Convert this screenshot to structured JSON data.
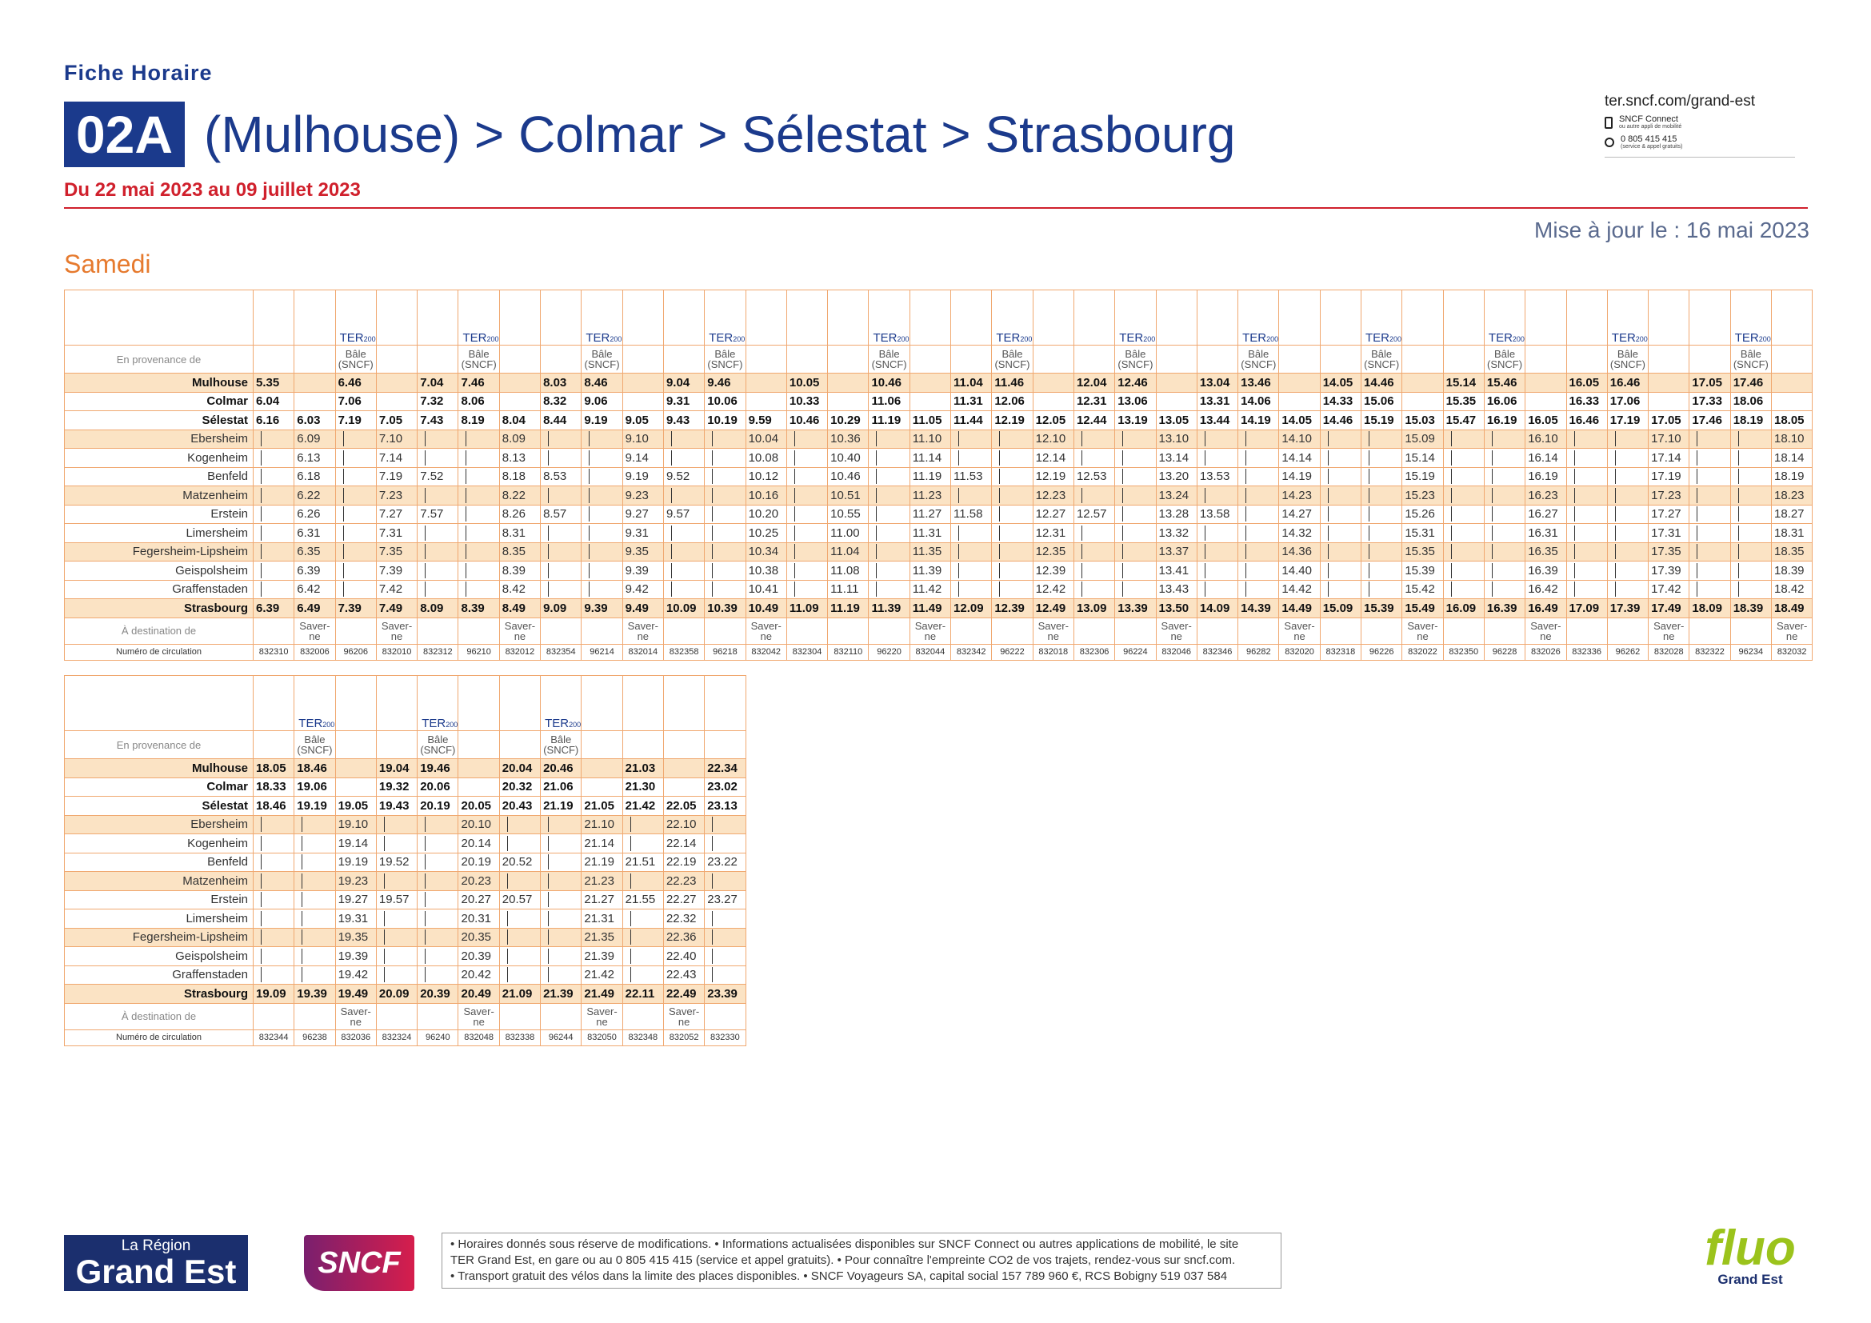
{
  "header": {
    "fiche": "Fiche Horaire",
    "line": "02A",
    "title": "(Mulhouse) > Colmar > Sélestat > Strasbourg",
    "period": "Du 22 mai 2023 au 09 juillet 2023",
    "updated": "Mise à jour le : 16 mai 2023",
    "day": "Samedi"
  },
  "contact": {
    "site": "ter.sncf.com/grand-est",
    "app": "SNCF Connect",
    "app_note": "ou autre appli de mobilité",
    "phone": "0 805 415 415",
    "phone_note": "(service & appel gratuits)"
  },
  "labels": {
    "provenance": "En provenance de",
    "destination": "À destination de",
    "number": "Numéro de circulation",
    "brand": "TER",
    "brand_sub": "200"
  },
  "tables": [
    {
      "brand": [
        false,
        false,
        true,
        false,
        false,
        true,
        false,
        false,
        true,
        false,
        false,
        true,
        false,
        false,
        false,
        true,
        false,
        false,
        true,
        false,
        false,
        true,
        false,
        false,
        true,
        false,
        false,
        true,
        false,
        false,
        true,
        false,
        false,
        true,
        false,
        false,
        true,
        false
      ],
      "provenance": [
        null,
        null,
        "Bâle\n(SNCF)",
        null,
        null,
        "Bâle\n(SNCF)",
        null,
        null,
        "Bâle\n(SNCF)",
        null,
        null,
        "Bâle\n(SNCF)",
        null,
        null,
        null,
        "Bâle\n(SNCF)",
        null,
        null,
        "Bâle\n(SNCF)",
        null,
        null,
        "Bâle\n(SNCF)",
        null,
        null,
        "Bâle\n(SNCF)",
        null,
        null,
        "Bâle\n(SNCF)",
        null,
        null,
        "Bâle\n(SNCF)",
        null,
        null,
        "Bâle\n(SNCF)",
        null,
        null,
        "Bâle\n(SNCF)",
        null
      ],
      "rows": [
        {
          "station": "Mulhouse",
          "times": [
            "5.35",
            null,
            "6.46",
            null,
            "7.04",
            "7.46",
            null,
            "8.03",
            "8.46",
            null,
            "9.04",
            "9.46",
            null,
            "10.05",
            null,
            "10.46",
            null,
            "11.04",
            "11.46",
            null,
            "12.04",
            "12.46",
            null,
            "13.04",
            "13.46",
            null,
            "14.05",
            "14.46",
            null,
            "15.14",
            "15.46",
            null,
            "16.05",
            "16.46",
            null,
            "17.05",
            "17.46",
            null
          ]
        },
        {
          "station": "Colmar",
          "times": [
            "6.04",
            null,
            "7.06",
            null,
            "7.32",
            "8.06",
            null,
            "8.32",
            "9.06",
            null,
            "9.31",
            "10.06",
            null,
            "10.33",
            null,
            "11.06",
            null,
            "11.31",
            "12.06",
            null,
            "12.31",
            "13.06",
            null,
            "13.31",
            "14.06",
            null,
            "14.33",
            "15.06",
            null,
            "15.35",
            "16.06",
            null,
            "16.33",
            "17.06",
            null,
            "17.33",
            "18.06",
            null
          ]
        },
        {
          "station": "Sélestat",
          "times": [
            "6.16",
            "6.03",
            "7.19",
            "7.05",
            "7.43",
            "8.19",
            "8.04",
            "8.44",
            "9.19",
            "9.05",
            "9.43",
            "10.19",
            "9.59",
            "10.46",
            "10.29",
            "11.19",
            "11.05",
            "11.44",
            "12.19",
            "12.05",
            "12.44",
            "13.19",
            "13.05",
            "13.44",
            "14.19",
            "14.05",
            "14.46",
            "15.19",
            "15.03",
            "15.47",
            "16.19",
            "16.05",
            "16.46",
            "17.19",
            "17.05",
            "17.46",
            "18.19",
            "18.05"
          ]
        },
        {
          "station": "Ebersheim",
          "times": [
            null,
            "6.09",
            null,
            "7.10",
            null,
            null,
            "8.09",
            null,
            null,
            "9.10",
            null,
            null,
            "10.04",
            null,
            "10.36",
            null,
            "11.10",
            null,
            null,
            "12.10",
            null,
            null,
            "13.10",
            null,
            null,
            "14.10",
            null,
            null,
            "15.09",
            null,
            null,
            "16.10",
            null,
            null,
            "17.10",
            null,
            null,
            "18.10"
          ]
        },
        {
          "station": "Kogenheim",
          "times": [
            null,
            "6.13",
            null,
            "7.14",
            null,
            null,
            "8.13",
            null,
            null,
            "9.14",
            null,
            null,
            "10.08",
            null,
            "10.40",
            null,
            "11.14",
            null,
            null,
            "12.14",
            null,
            null,
            "13.14",
            null,
            null,
            "14.14",
            null,
            null,
            "15.14",
            null,
            null,
            "16.14",
            null,
            null,
            "17.14",
            null,
            null,
            "18.14"
          ]
        },
        {
          "station": "Benfeld",
          "times": [
            null,
            "6.18",
            null,
            "7.19",
            "7.52",
            null,
            "8.18",
            "8.53",
            null,
            "9.19",
            "9.52",
            null,
            "10.12",
            null,
            "10.46",
            null,
            "11.19",
            "11.53",
            null,
            "12.19",
            "12.53",
            null,
            "13.20",
            "13.53",
            null,
            "14.19",
            null,
            null,
            "15.19",
            null,
            null,
            "16.19",
            null,
            null,
            "17.19",
            null,
            null,
            "18.19"
          ]
        },
        {
          "station": "Matzenheim",
          "times": [
            null,
            "6.22",
            null,
            "7.23",
            null,
            null,
            "8.22",
            null,
            null,
            "9.23",
            null,
            null,
            "10.16",
            null,
            "10.51",
            null,
            "11.23",
            null,
            null,
            "12.23",
            null,
            null,
            "13.24",
            null,
            null,
            "14.23",
            null,
            null,
            "15.23",
            null,
            null,
            "16.23",
            null,
            null,
            "17.23",
            null,
            null,
            "18.23"
          ]
        },
        {
          "station": "Erstein",
          "times": [
            null,
            "6.26",
            null,
            "7.27",
            "7.57",
            null,
            "8.26",
            "8.57",
            null,
            "9.27",
            "9.57",
            null,
            "10.20",
            null,
            "10.55",
            null,
            "11.27",
            "11.58",
            null,
            "12.27",
            "12.57",
            null,
            "13.28",
            "13.58",
            null,
            "14.27",
            null,
            null,
            "15.26",
            null,
            null,
            "16.27",
            null,
            null,
            "17.27",
            null,
            null,
            "18.27"
          ]
        },
        {
          "station": "Limersheim",
          "times": [
            null,
            "6.31",
            null,
            "7.31",
            null,
            null,
            "8.31",
            null,
            null,
            "9.31",
            null,
            null,
            "10.25",
            null,
            "11.00",
            null,
            "11.31",
            null,
            null,
            "12.31",
            null,
            null,
            "13.32",
            null,
            null,
            "14.32",
            null,
            null,
            "15.31",
            null,
            null,
            "16.31",
            null,
            null,
            "17.31",
            null,
            null,
            "18.31"
          ]
        },
        {
          "station": "Fegersheim-Lipsheim",
          "times": [
            null,
            "6.35",
            null,
            "7.35",
            null,
            null,
            "8.35",
            null,
            null,
            "9.35",
            null,
            null,
            "10.34",
            null,
            "11.04",
            null,
            "11.35",
            null,
            null,
            "12.35",
            null,
            null,
            "13.37",
            null,
            null,
            "14.36",
            null,
            null,
            "15.35",
            null,
            null,
            "16.35",
            null,
            null,
            "17.35",
            null,
            null,
            "18.35"
          ]
        },
        {
          "station": "Geispolsheim",
          "times": [
            null,
            "6.39",
            null,
            "7.39",
            null,
            null,
            "8.39",
            null,
            null,
            "9.39",
            null,
            null,
            "10.38",
            null,
            "11.08",
            null,
            "11.39",
            null,
            null,
            "12.39",
            null,
            null,
            "13.41",
            null,
            null,
            "14.40",
            null,
            null,
            "15.39",
            null,
            null,
            "16.39",
            null,
            null,
            "17.39",
            null,
            null,
            "18.39"
          ]
        },
        {
          "station": "Graffenstaden",
          "times": [
            null,
            "6.42",
            null,
            "7.42",
            null,
            null,
            "8.42",
            null,
            null,
            "9.42",
            null,
            null,
            "10.41",
            null,
            "11.11",
            null,
            "11.42",
            null,
            null,
            "12.42",
            null,
            null,
            "13.43",
            null,
            null,
            "14.42",
            null,
            null,
            "15.42",
            null,
            null,
            "16.42",
            null,
            null,
            "17.42",
            null,
            null,
            "18.42"
          ]
        },
        {
          "station": "Strasbourg",
          "times": [
            "6.39",
            "6.49",
            "7.39",
            "7.49",
            "8.09",
            "8.39",
            "8.49",
            "9.09",
            "9.39",
            "9.49",
            "10.09",
            "10.39",
            "10.49",
            "11.09",
            "11.19",
            "11.39",
            "11.49",
            "12.09",
            "12.39",
            "12.49",
            "13.09",
            "13.39",
            "13.50",
            "14.09",
            "14.39",
            "14.49",
            "15.09",
            "15.39",
            "15.49",
            "16.09",
            "16.39",
            "16.49",
            "17.09",
            "17.39",
            "17.49",
            "18.09",
            "18.39",
            "18.49"
          ]
        }
      ],
      "destination": [
        null,
        "Saver-\nne",
        null,
        "Saver-\nne",
        null,
        null,
        "Saver-\nne",
        null,
        null,
        "Saver-\nne",
        null,
        null,
        "Saver-\nne",
        null,
        null,
        null,
        "Saver-\nne",
        null,
        null,
        "Saver-\nne",
        null,
        null,
        "Saver-\nne",
        null,
        null,
        "Saver-\nne",
        null,
        null,
        "Saver-\nne",
        null,
        null,
        "Saver-\nne",
        null,
        null,
        "Saver-\nne",
        null,
        null,
        "Saver-\nne"
      ],
      "numbers": [
        "832310",
        "832006",
        "96206",
        "832010",
        "832312",
        "96210",
        "832012",
        "832354",
        "96214",
        "832014",
        "832358",
        "96218",
        "832042",
        "832304",
        "832110",
        "96220",
        "832044",
        "832342",
        "96222",
        "832018",
        "832306",
        "96224",
        "832046",
        "832346",
        "96282",
        "832020",
        "832318",
        "96226",
        "832022",
        "832350",
        "96228",
        "832026",
        "832336",
        "96262",
        "832028",
        "832322",
        "96234",
        "832032"
      ]
    },
    {
      "brand": [
        false,
        true,
        false,
        false,
        true,
        false,
        false,
        true,
        false,
        false,
        false,
        false
      ],
      "provenance": [
        null,
        "Bâle\n(SNCF)",
        null,
        null,
        "Bâle\n(SNCF)",
        null,
        null,
        "Bâle\n(SNCF)",
        null,
        null,
        null,
        null
      ],
      "rows": [
        {
          "station": "Mulhouse",
          "times": [
            "18.05",
            "18.46",
            null,
            "19.04",
            "19.46",
            null,
            "20.04",
            "20.46",
            null,
            "21.03",
            null,
            "22.34"
          ]
        },
        {
          "station": "Colmar",
          "times": [
            "18.33",
            "19.06",
            null,
            "19.32",
            "20.06",
            null,
            "20.32",
            "21.06",
            null,
            "21.30",
            null,
            "23.02"
          ]
        },
        {
          "station": "Sélestat",
          "times": [
            "18.46",
            "19.19",
            "19.05",
            "19.43",
            "20.19",
            "20.05",
            "20.43",
            "21.19",
            "21.05",
            "21.42",
            "22.05",
            "23.13"
          ]
        },
        {
          "station": "Ebersheim",
          "times": [
            null,
            null,
            "19.10",
            null,
            null,
            "20.10",
            null,
            null,
            "21.10",
            null,
            "22.10",
            null
          ]
        },
        {
          "station": "Kogenheim",
          "times": [
            null,
            null,
            "19.14",
            null,
            null,
            "20.14",
            null,
            null,
            "21.14",
            null,
            "22.14",
            null
          ]
        },
        {
          "station": "Benfeld",
          "times": [
            null,
            null,
            "19.19",
            "19.52",
            null,
            "20.19",
            "20.52",
            null,
            "21.19",
            "21.51",
            "22.19",
            "23.22"
          ]
        },
        {
          "station": "Matzenheim",
          "times": [
            null,
            null,
            "19.23",
            null,
            null,
            "20.23",
            null,
            null,
            "21.23",
            null,
            "22.23",
            null
          ]
        },
        {
          "station": "Erstein",
          "times": [
            null,
            null,
            "19.27",
            "19.57",
            null,
            "20.27",
            "20.57",
            null,
            "21.27",
            "21.55",
            "22.27",
            "23.27"
          ]
        },
        {
          "station": "Limersheim",
          "times": [
            null,
            null,
            "19.31",
            null,
            null,
            "20.31",
            null,
            null,
            "21.31",
            null,
            "22.32",
            null
          ]
        },
        {
          "station": "Fegersheim-Lipsheim",
          "times": [
            null,
            null,
            "19.35",
            null,
            null,
            "20.35",
            null,
            null,
            "21.35",
            null,
            "22.36",
            null
          ]
        },
        {
          "station": "Geispolsheim",
          "times": [
            null,
            null,
            "19.39",
            null,
            null,
            "20.39",
            null,
            null,
            "21.39",
            null,
            "22.40",
            null
          ]
        },
        {
          "station": "Graffenstaden",
          "times": [
            null,
            null,
            "19.42",
            null,
            null,
            "20.42",
            null,
            null,
            "21.42",
            null,
            "22.43",
            null
          ]
        },
        {
          "station": "Strasbourg",
          "times": [
            "19.09",
            "19.39",
            "19.49",
            "20.09",
            "20.39",
            "20.49",
            "21.09",
            "21.39",
            "21.49",
            "22.11",
            "22.49",
            "23.39"
          ]
        }
      ],
      "destination": [
        null,
        null,
        "Saver-\nne",
        null,
        null,
        "Saver-\nne",
        null,
        null,
        "Saver-\nne",
        null,
        "Saver-\nne",
        null
      ],
      "numbers": [
        "832344",
        "96238",
        "832036",
        "832324",
        "96240",
        "832048",
        "832338",
        "96244",
        "832050",
        "832348",
        "832052",
        "832330"
      ]
    }
  ],
  "footer": {
    "notice": [
      "• Horaires donnés sous réserve de modifications. • Informations actualisées disponibles sur SNCF Connect ou autres applications de mobilité, le site",
      "TER Grand Est, en gare ou au 0 805 415 415 (service et appel gratuits). • Pour connaître l'empreinte CO2 de vos trajets, rendez-vous sur sncf.com.",
      "• Transport gratuit des vélos dans la limite des places disponibles. • SNCF Voyageurs SA, capital social 157 789 960 €, RCS Bobigny 519 037 584"
    ],
    "region_top": "La Région",
    "region": "Grand Est",
    "sncf": "SNCF",
    "fluo": "fluo",
    "fluo_sub": "Grand Est"
  }
}
